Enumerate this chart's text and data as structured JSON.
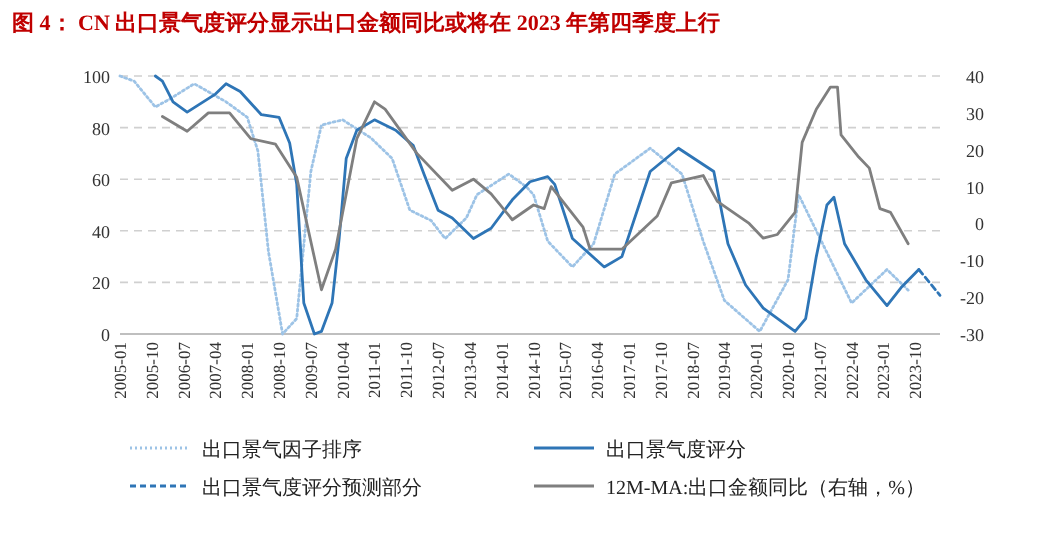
{
  "chart_data": {
    "type": "line",
    "title": "图 4： CN 出口景气度评分显示出口金额同比或将在 2023 年第四季度上行",
    "xlim": [
      "2005-01",
      "2024-05"
    ],
    "xticks": [
      "2005-01",
      "2005-10",
      "2006-07",
      "2007-04",
      "2008-01",
      "2008-10",
      "2009-07",
      "2010-04",
      "2011-01",
      "2011-10",
      "2012-07",
      "2013-04",
      "2014-01",
      "2014-10",
      "2015-07",
      "2016-04",
      "2017-01",
      "2017-10",
      "2018-07",
      "2019-04",
      "2020-01",
      "2020-10",
      "2021-07",
      "2022-04",
      "2023-01",
      "2023-10"
    ],
    "ylim": [
      0,
      100
    ],
    "yticks": [
      0,
      20,
      40,
      60,
      80,
      100
    ],
    "y2lim": [
      -30,
      40
    ],
    "y2ticks": [
      -30,
      -20,
      -10,
      0,
      10,
      20,
      30,
      40
    ],
    "grid": "y",
    "legend": "bottom",
    "series": [
      {
        "name": "出口景气因子排序",
        "color": "#9dc3e6",
        "line_style": "dotted",
        "x": [
          "2005-01",
          "2005-05",
          "2005-11",
          "2006-03",
          "2006-10",
          "2007-07",
          "2008-01",
          "2008-04",
          "2008-07",
          "2008-11",
          "2009-03",
          "2009-07",
          "2009-10",
          "2010-04",
          "2010-12",
          "2011-06",
          "2011-11",
          "2012-05",
          "2012-09",
          "2013-03",
          "2013-06",
          "2014-03",
          "2014-08",
          "2014-10",
          "2015-02",
          "2015-09",
          "2016-03",
          "2016-09",
          "2017-07",
          "2018-04",
          "2018-10",
          "2019-04",
          "2020-02",
          "2020-10",
          "2021-01",
          "2021-06",
          "2022-04",
          "2023-02",
          "2023-08"
        ],
        "values": [
          100,
          98,
          88,
          91,
          97,
          90,
          84,
          71,
          32,
          0,
          6,
          63,
          81,
          83,
          76,
          68,
          48,
          44,
          37,
          45,
          54,
          62,
          57,
          54,
          36,
          26,
          35,
          62,
          72,
          62,
          36,
          13,
          1,
          21,
          54,
          40,
          12,
          25,
          17
        ]
      },
      {
        "name": "出口景气度评分",
        "color": "#2e75b6",
        "line_style": "solid",
        "x": [
          "2005-11",
          "2006-01",
          "2006-04",
          "2006-08",
          "2007-04",
          "2007-07",
          "2007-11",
          "2008-05",
          "2008-10",
          "2009-01",
          "2009-03",
          "2009-05",
          "2009-08",
          "2009-10",
          "2010-01",
          "2010-03",
          "2010-05",
          "2010-08",
          "2011-01",
          "2011-07",
          "2011-12",
          "2012-03",
          "2012-07",
          "2012-11",
          "2013-05",
          "2013-10",
          "2014-04",
          "2014-09",
          "2015-02",
          "2015-04",
          "2015-09",
          "2016-06",
          "2016-11",
          "2017-07",
          "2018-03",
          "2019-01",
          "2019-05",
          "2019-10",
          "2020-03",
          "2020-12",
          "2021-03",
          "2021-06",
          "2021-09",
          "2021-11",
          "2022-02",
          "2022-08",
          "2023-02",
          "2023-06",
          "2023-11"
        ],
        "values": [
          100,
          98,
          90,
          86,
          93,
          97,
          94,
          85,
          84,
          74,
          58,
          12,
          0,
          1,
          12,
          37,
          68,
          79,
          83,
          79,
          73,
          62,
          48,
          45,
          37,
          41,
          52,
          59,
          61,
          58,
          37,
          26,
          30,
          63,
          72,
          63,
          35,
          19,
          10,
          1,
          6,
          30,
          50,
          53,
          35,
          21,
          11,
          18,
          25
        ]
      },
      {
        "name": "出口景气度评分预测部分",
        "color": "#2e75b6",
        "line_style": "dashed",
        "x": [
          "2023-11",
          "2024-05"
        ],
        "values": [
          25,
          15
        ]
      },
      {
        "name": "12M-MA:出口金额同比（右轴，%）",
        "color": "#7f7f7f",
        "line_style": "solid",
        "axis": "y2",
        "x": [
          "2006-01",
          "2006-08",
          "2007-02",
          "2007-08",
          "2008-02",
          "2008-09",
          "2009-03",
          "2009-10",
          "2010-02",
          "2010-08",
          "2011-01",
          "2011-04",
          "2012-01",
          "2012-11",
          "2013-05",
          "2013-10",
          "2014-04",
          "2014-10",
          "2015-01",
          "2015-03",
          "2015-12",
          "2016-02",
          "2016-11",
          "2017-09",
          "2018-01",
          "2018-10",
          "2019-02",
          "2019-11",
          "2020-03",
          "2020-07",
          "2020-12",
          "2021-02",
          "2021-06",
          "2021-10",
          "2021-12",
          "2022-01",
          "2022-06",
          "2022-09",
          "2022-12",
          "2023-03",
          "2023-08"
        ],
        "values": [
          29,
          25,
          30,
          30,
          23,
          21.5,
          12.5,
          -18,
          -7,
          23,
          33,
          31,
          19,
          9,
          12,
          8,
          1,
          5,
          4,
          10,
          -1,
          -7,
          -7,
          2,
          11,
          13,
          6,
          0,
          -4,
          -3,
          3,
          22,
          31,
          37,
          37,
          24,
          18,
          15,
          4,
          3,
          -5.5
        ]
      }
    ]
  }
}
